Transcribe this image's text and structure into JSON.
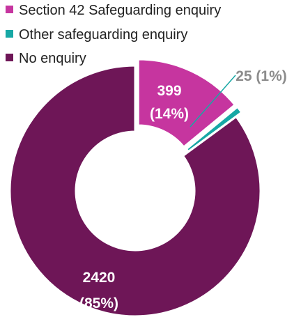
{
  "chart_data": {
    "type": "pie",
    "donut": true,
    "title": "",
    "legend_position": "top-left",
    "series": [
      {
        "name": "Section 42 Safeguarding enquiry",
        "value": 399,
        "percent": "14%",
        "color": "#C6359F",
        "label_color": "#ffffff",
        "exploded": true
      },
      {
        "name": "Other safeguarding enquiry",
        "value": 25,
        "percent": "1%",
        "color": "#17A8A5",
        "label_color": "#8C8C8C",
        "exploded": true
      },
      {
        "name": "No enquiry",
        "value": 2420,
        "percent": "85%",
        "color": "#6E1657",
        "label_color": "#ffffff",
        "exploded": false
      }
    ],
    "labels": {
      "s42_value": "399",
      "s42_percent": "(14%)",
      "other": "25 (1%)",
      "none_value": "2420",
      "none_percent": "(85%)"
    }
  }
}
